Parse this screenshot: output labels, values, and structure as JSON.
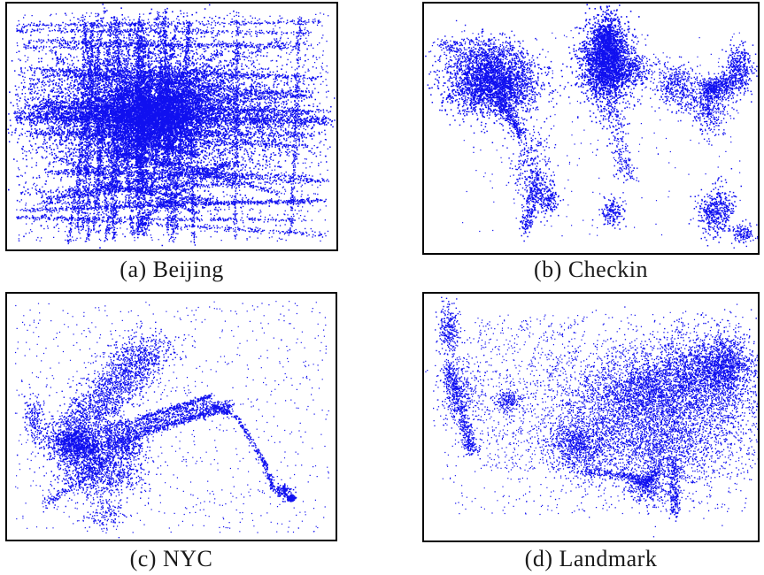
{
  "colors": {
    "points": "#1010f0",
    "border": "#000000",
    "caption": "#1a1a1a"
  },
  "panels": [
    {
      "id": "a",
      "caption": "(a) Beijing"
    },
    {
      "id": "b",
      "caption": "(b) Checkin"
    },
    {
      "id": "c",
      "caption": "(c) NYC"
    },
    {
      "id": "d",
      "caption": "(d) Landmark"
    }
  ]
}
